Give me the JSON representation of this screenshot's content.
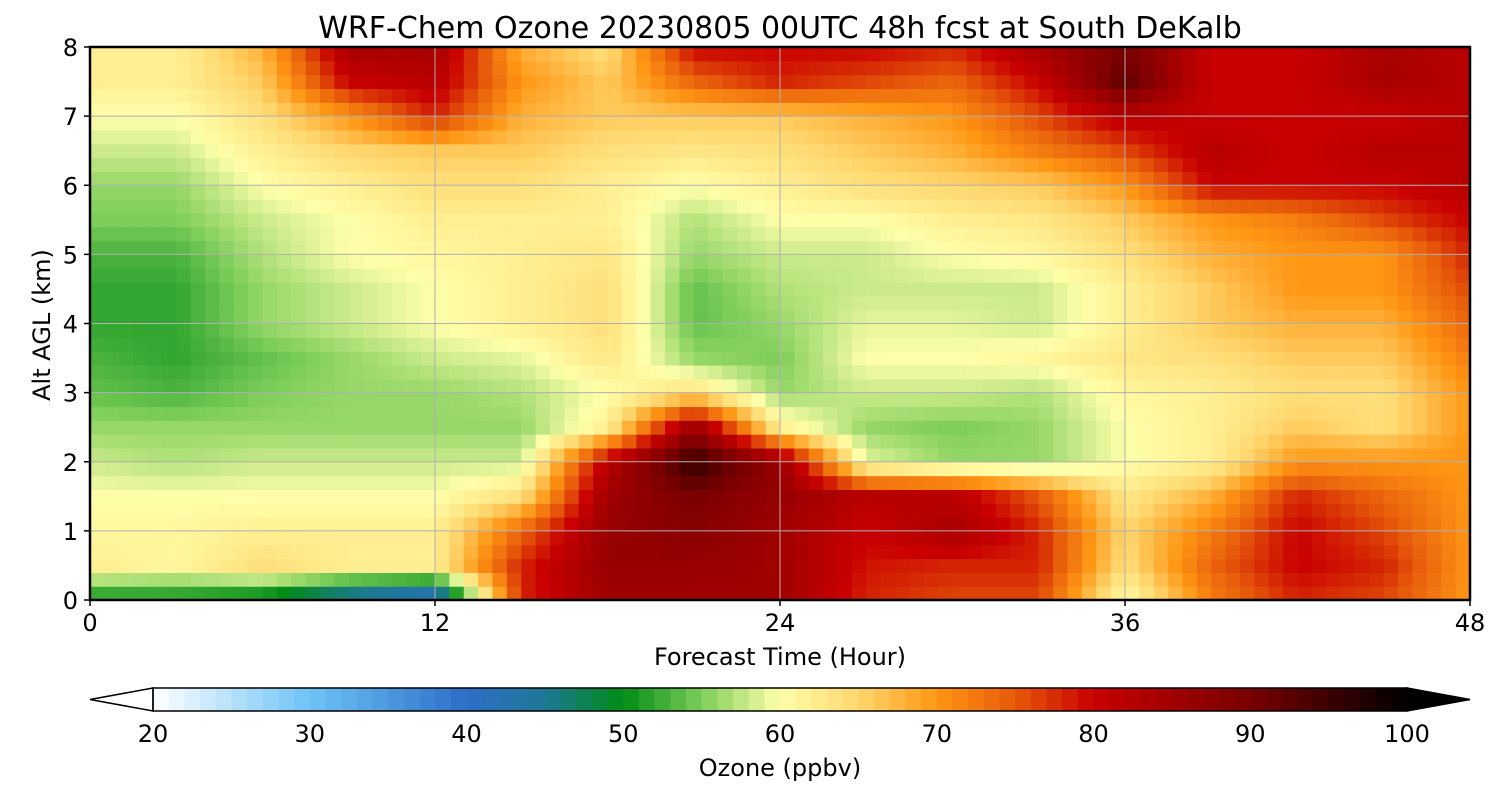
{
  "chart_data": {
    "type": "heatmap",
    "title": "WRF-Chem Ozone  20230805 00UTC 48h fcst at South DeKalb",
    "xlabel": "Forecast Time (Hour)",
    "ylabel": "Alt AGL (km)",
    "xlim": [
      0,
      48
    ],
    "ylim": [
      0,
      8
    ],
    "x_ticks": [
      "0",
      "12",
      "24",
      "36",
      "48"
    ],
    "y_ticks": [
      "0",
      "1",
      "2",
      "3",
      "4",
      "5",
      "6",
      "7",
      "8"
    ],
    "grid": true,
    "z_label": "Ozone  (ppbv)",
    "colorbar": {
      "label": "Ozone  (ppbv)",
      "min": 20,
      "max": 100,
      "ticks": [
        "20",
        "30",
        "40",
        "50",
        "60",
        "70",
        "80",
        "90",
        "100"
      ],
      "extend": "both",
      "orientation": "horizontal"
    },
    "x": [
      0,
      3,
      6,
      9,
      12,
      15,
      18,
      21,
      24,
      27,
      30,
      33,
      36,
      39,
      42,
      45,
      48
    ],
    "y": [
      0,
      0.5,
      1,
      1.5,
      2,
      2.5,
      3,
      3.5,
      4,
      4.5,
      5,
      5.5,
      6,
      6.5,
      7,
      7.5,
      8
    ],
    "z": [
      [
        50,
        50,
        48,
        42,
        38,
        78,
        85,
        85,
        85,
        78,
        76,
        76,
        60,
        72,
        78,
        76,
        70
      ],
      [
        62,
        61,
        64,
        62,
        62,
        78,
        86,
        86,
        85,
        79,
        78,
        78,
        64,
        74,
        80,
        78,
        70
      ],
      [
        61,
        61,
        62,
        62,
        62,
        74,
        86,
        88,
        85,
        80,
        84,
        78,
        65,
        72,
        80,
        76,
        70
      ],
      [
        60,
        60,
        60,
        60,
        60,
        64,
        85,
        90,
        86,
        82,
        82,
        75,
        63,
        68,
        78,
        74,
        70
      ],
      [
        58,
        57,
        58,
        58,
        58,
        58,
        82,
        96,
        86,
        59,
        56,
        56,
        60,
        62,
        70,
        70,
        70
      ],
      [
        56,
        56,
        56,
        56,
        56,
        56,
        62,
        86,
        62,
        56,
        55,
        56,
        60,
        62,
        66,
        64,
        70
      ],
      [
        54,
        53,
        55,
        56,
        56,
        57,
        60,
        64,
        56,
        58,
        58,
        57,
        61,
        62,
        64,
        64,
        70
      ],
      [
        53,
        52,
        54,
        56,
        58,
        59,
        63,
        56,
        55,
        60,
        60,
        61,
        63,
        64,
        66,
        66,
        72
      ],
      [
        52,
        52,
        56,
        58,
        60,
        62,
        64,
        54,
        56,
        59,
        59,
        58,
        62,
        66,
        68,
        68,
        74
      ],
      [
        52,
        52,
        56,
        58,
        60,
        62,
        64,
        54,
        57,
        58,
        58,
        58,
        62,
        66,
        70,
        70,
        76
      ],
      [
        53,
        53,
        57,
        60,
        61,
        62,
        63,
        56,
        58,
        58,
        60,
        61,
        64,
        68,
        70,
        70,
        78
      ],
      [
        55,
        55,
        58,
        60,
        62,
        62,
        62,
        57,
        60,
        60,
        62,
        63,
        66,
        70,
        72,
        76,
        80
      ],
      [
        56,
        56,
        60,
        62,
        64,
        64,
        62,
        60,
        62,
        64,
        65,
        66,
        70,
        80,
        80,
        80,
        82
      ],
      [
        58,
        58,
        62,
        65,
        66,
        66,
        64,
        63,
        64,
        66,
        68,
        72,
        76,
        82,
        80,
        82,
        82
      ],
      [
        60,
        60,
        64,
        70,
        78,
        68,
        66,
        66,
        66,
        68,
        70,
        76,
        82,
        80,
        80,
        80,
        82
      ],
      [
        62,
        62,
        66,
        80,
        82,
        70,
        66,
        74,
        78,
        76,
        74,
        80,
        92,
        80,
        80,
        84,
        82
      ],
      [
        62,
        62,
        68,
        84,
        84,
        68,
        64,
        80,
        80,
        80,
        78,
        84,
        90,
        80,
        80,
        84,
        82
      ]
    ]
  }
}
